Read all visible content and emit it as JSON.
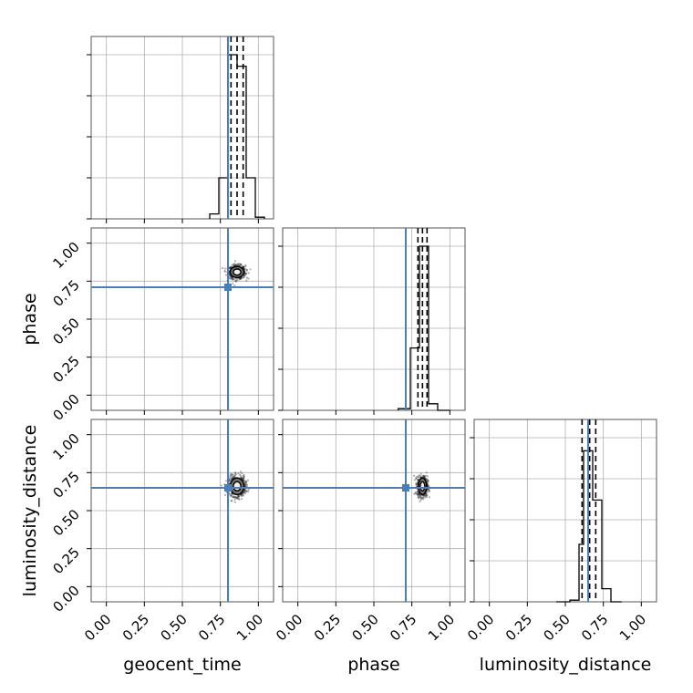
{
  "chart_data": {
    "type": "corner",
    "parameters": [
      "geocent_time",
      "phase",
      "luminosity_distance"
    ],
    "axis_ticks": [
      "0.00",
      "0.25",
      "0.50",
      "0.75",
      "1.00"
    ],
    "xlim": [
      -0.1,
      1.1
    ],
    "ylim": [
      -0.1,
      1.1
    ],
    "truth": {
      "geocent_time": 0.8,
      "phase": 0.71,
      "luminosity_distance": 0.65
    },
    "colors": {
      "truth": "#4a7fb5",
      "hist": "#000000",
      "grid": "#b0b0b0"
    },
    "histograms": {
      "geocent_time": {
        "bin_edges": [
          0.68,
          0.74,
          0.8,
          0.86,
          0.92,
          0.98,
          1.04
        ],
        "counts": [
          0.03,
          0.25,
          1.0,
          0.93,
          0.25,
          0.01
        ],
        "quantiles": [
          0.82,
          0.86,
          0.9
        ]
      },
      "phase": {
        "bin_edges": [
          0.66,
          0.74,
          0.8,
          0.86,
          0.92,
          1.0
        ],
        "counts": [
          0.01,
          0.38,
          1.0,
          0.04,
          0.0
        ],
        "quantiles": [
          0.79,
          0.82,
          0.85
        ]
      },
      "luminosity_distance": {
        "bin_edges": [
          0.44,
          0.53,
          0.59,
          0.62,
          0.68,
          0.74,
          0.8,
          0.87
        ],
        "counts": [
          0.0,
          0.01,
          0.35,
          0.92,
          0.62,
          0.08,
          0.0
        ],
        "quantiles": [
          0.61,
          0.66,
          0.7
        ]
      }
    },
    "scatter_2d": {
      "phase_vs_geocent_time": {
        "center": [
          0.86,
          0.81
        ],
        "spread": [
          0.05,
          0.04
        ]
      },
      "luminosity_distance_vs_geocent_time": {
        "center": [
          0.86,
          0.66
        ],
        "spread": [
          0.05,
          0.06
        ]
      },
      "luminosity_distance_vs_phase": {
        "center": [
          0.82,
          0.66
        ],
        "spread": [
          0.03,
          0.06
        ]
      }
    }
  }
}
